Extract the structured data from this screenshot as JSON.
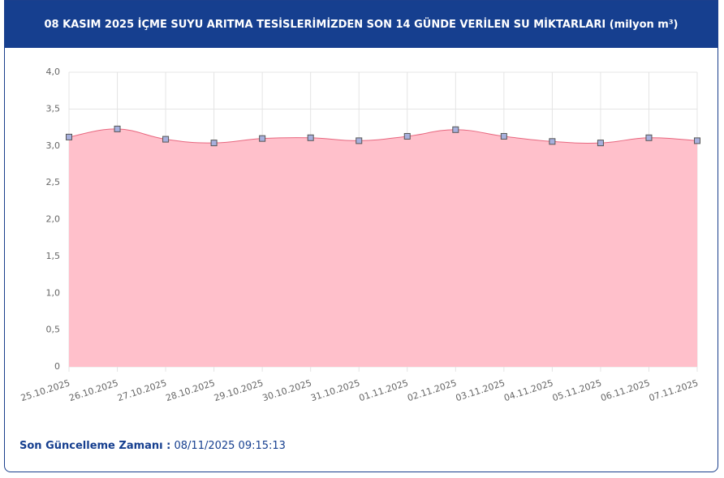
{
  "chart_data": {
    "type": "area",
    "title": "08 KASIM 2025 İÇME SUYU ARITMA TESİSLERİMİZDEN SON 14 GÜNDE VERİLEN SU MİKTARLARI (milyon m³)",
    "categories": [
      "25.10.2025",
      "26.10.2025",
      "27.10.2025",
      "28.10.2025",
      "29.10.2025",
      "30.10.2025",
      "31.10.2025",
      "01.11.2025",
      "02.11.2025",
      "03.11.2025",
      "04.11.2025",
      "05.11.2025",
      "06.11.2025",
      "07.11.2025"
    ],
    "series": [
      {
        "color": "#e8677f",
        "fill": "#ffc0cb",
        "marker_color": "#a7b0dd",
        "values": [
          3.12,
          3.23,
          3.09,
          3.04,
          3.1,
          3.11,
          3.07,
          3.13,
          3.22,
          3.13,
          3.06,
          3.04,
          3.11,
          3.07
        ]
      }
    ],
    "ylim": [
      0,
      4
    ],
    "yticks": [
      0,
      {
        "value": 0.5,
        "label": "0,5"
      },
      {
        "value": 1,
        "label": "1,0"
      },
      {
        "value": 1.5,
        "label": "1,5"
      },
      {
        "value": 2,
        "label": "2,0"
      },
      {
        "value": 2.5,
        "label": "2,5"
      },
      {
        "value": 3,
        "label": "3,0"
      },
      {
        "value": 3.5,
        "label": "3,5"
      },
      {
        "value": 4,
        "label": "4,0"
      }
    ],
    "grid": true
  },
  "footer": {
    "label": "Son Güncelleme Zamanı :",
    "value": "08/11/2025 09:15:13"
  }
}
